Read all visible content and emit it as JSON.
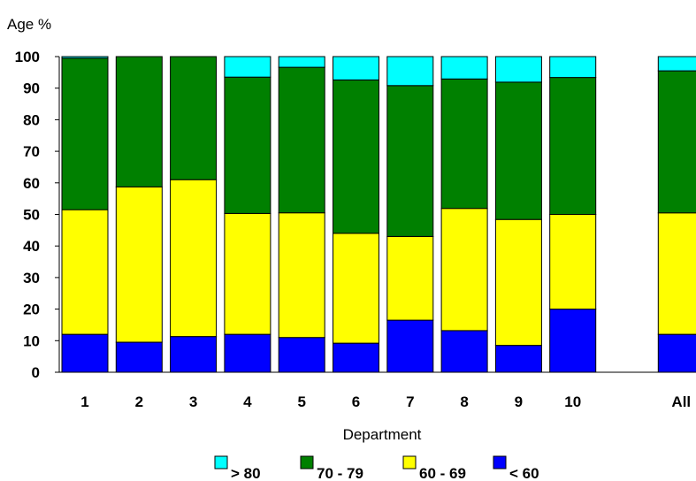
{
  "chart_data": {
    "type": "bar",
    "stacked": true,
    "percent_stacked": true,
    "title": "",
    "ylabel": "Age %",
    "xlabel": "Department",
    "ylim": [
      0,
      100
    ],
    "yticks": [
      0,
      10,
      20,
      30,
      40,
      50,
      60,
      70,
      80,
      90,
      100
    ],
    "grid": false,
    "legend_position": "bottom",
    "categories": [
      "1",
      "2",
      "3",
      "4",
      "5",
      "6",
      "7",
      "8",
      "9",
      "10",
      "",
      "All"
    ],
    "series": [
      {
        "name": "< 60",
        "color": "#0000ff",
        "values": [
          12,
          9.5,
          11.3,
          12,
          11,
          9.2,
          16.5,
          13.2,
          8.5,
          20,
          null,
          12
        ]
      },
      {
        "name": "60 - 69",
        "color": "#ffff00",
        "values": [
          39.5,
          49.2,
          49.7,
          38.3,
          39.5,
          34.8,
          26.5,
          38.7,
          39.9,
          30,
          null,
          38.5
        ]
      },
      {
        "name": "70 - 79",
        "color": "#008000",
        "values": [
          48,
          41.3,
          39,
          43.2,
          46.1,
          48.6,
          47.8,
          41,
          43.5,
          43.4,
          null,
          45
        ]
      },
      {
        "name": "> 80",
        "color": "#00ffff",
        "values": [
          0.5,
          0,
          0,
          6.5,
          3.4,
          7.4,
          9.2,
          7.1,
          8.1,
          6.6,
          null,
          4.5
        ]
      }
    ],
    "legend_order": [
      "> 80",
      "70 - 79",
      "60 - 69",
      "< 60"
    ]
  }
}
